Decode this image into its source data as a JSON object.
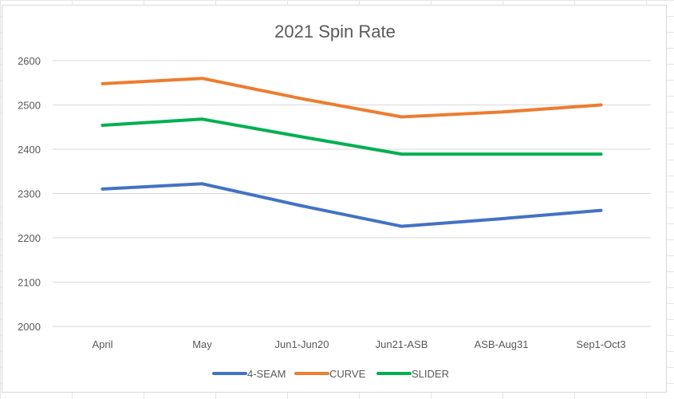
{
  "chart_data": {
    "type": "line",
    "title": "2021 Spin Rate",
    "categories": [
      "April",
      "May",
      "Jun1-Jun20",
      "Jun21-ASB",
      "ASB-Aug31",
      "Sep1-Oct3"
    ],
    "yticks": [
      2000,
      2100,
      2200,
      2300,
      2400,
      2500,
      2600
    ],
    "ylim": [
      2000,
      2600
    ],
    "grid": true,
    "legend_position": "bottom",
    "series": [
      {
        "name": "4-SEAM",
        "color": "#4472c4",
        "values": [
          2310,
          2322,
          2272,
          2226,
          2243,
          2262
        ]
      },
      {
        "name": "CURVE",
        "color": "#ed7d31",
        "values": [
          2548,
          2560,
          2514,
          2473,
          2484,
          2500
        ]
      },
      {
        "name": "SLIDER",
        "color": "#00b050",
        "values": [
          2454,
          2468,
          2428,
          2389,
          2389,
          2389
        ]
      }
    ]
  }
}
